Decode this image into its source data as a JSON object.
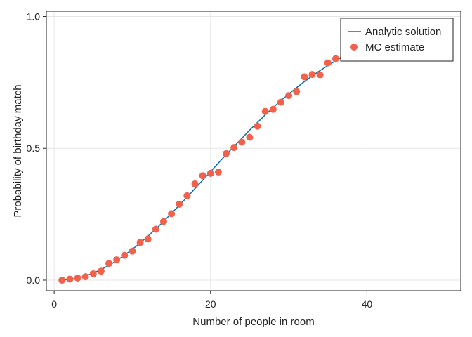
{
  "chart_data": {
    "type": "scatter",
    "xlabel": "Number of people in room",
    "ylabel": "Probability of birthday match",
    "xlim": [
      -1,
      52
    ],
    "ylim": [
      -0.04,
      1.02
    ],
    "xticks": [
      0,
      20,
      40
    ],
    "xtick_labels": [
      "0",
      "20",
      "40"
    ],
    "yticks": [
      0,
      0.5,
      1
    ],
    "ytick_labels": [
      "0.0",
      "0.5",
      "1.0"
    ],
    "grid": true,
    "legend_position": "top-right",
    "legend": [
      "Analytic solution",
      "MC estimate"
    ],
    "series": [
      {
        "name": "Analytic solution",
        "kind": "line",
        "color": "#0072b2",
        "x": [
          1,
          2,
          3,
          4,
          5,
          6,
          7,
          8,
          9,
          10,
          11,
          12,
          13,
          14,
          15,
          16,
          17,
          18,
          19,
          20,
          21,
          22,
          23,
          24,
          25,
          26,
          27,
          28,
          29,
          30,
          31,
          32,
          33,
          34,
          35,
          36,
          37,
          38
        ],
        "y": [
          0.0,
          0.003,
          0.008,
          0.016,
          0.027,
          0.04,
          0.056,
          0.074,
          0.095,
          0.117,
          0.141,
          0.167,
          0.194,
          0.223,
          0.253,
          0.284,
          0.315,
          0.347,
          0.379,
          0.411,
          0.444,
          0.476,
          0.507,
          0.538,
          0.569,
          0.598,
          0.627,
          0.654,
          0.681,
          0.706,
          0.73,
          0.753,
          0.775,
          0.795,
          0.814,
          0.832,
          0.849,
          0.864
        ]
      },
      {
        "name": "MC estimate",
        "kind": "scatter",
        "color": "#f0624b",
        "x": [
          1,
          2,
          3,
          4,
          5,
          6,
          7,
          8,
          9,
          10,
          11,
          12,
          13,
          14,
          15,
          16,
          17,
          18,
          19,
          20,
          21,
          22,
          23,
          24,
          25,
          26,
          27,
          28,
          29,
          30,
          31,
          32,
          33,
          34,
          35,
          36,
          37
        ],
        "y": [
          0.0,
          0.004,
          0.008,
          0.013,
          0.024,
          0.034,
          0.063,
          0.077,
          0.094,
          0.11,
          0.143,
          0.156,
          0.193,
          0.223,
          0.252,
          0.288,
          0.32,
          0.365,
          0.396,
          0.405,
          0.41,
          0.48,
          0.503,
          0.523,
          0.542,
          0.584,
          0.64,
          0.648,
          0.675,
          0.7,
          0.715,
          0.771,
          0.78,
          0.779,
          0.824,
          0.84,
          0.845
        ]
      }
    ]
  }
}
